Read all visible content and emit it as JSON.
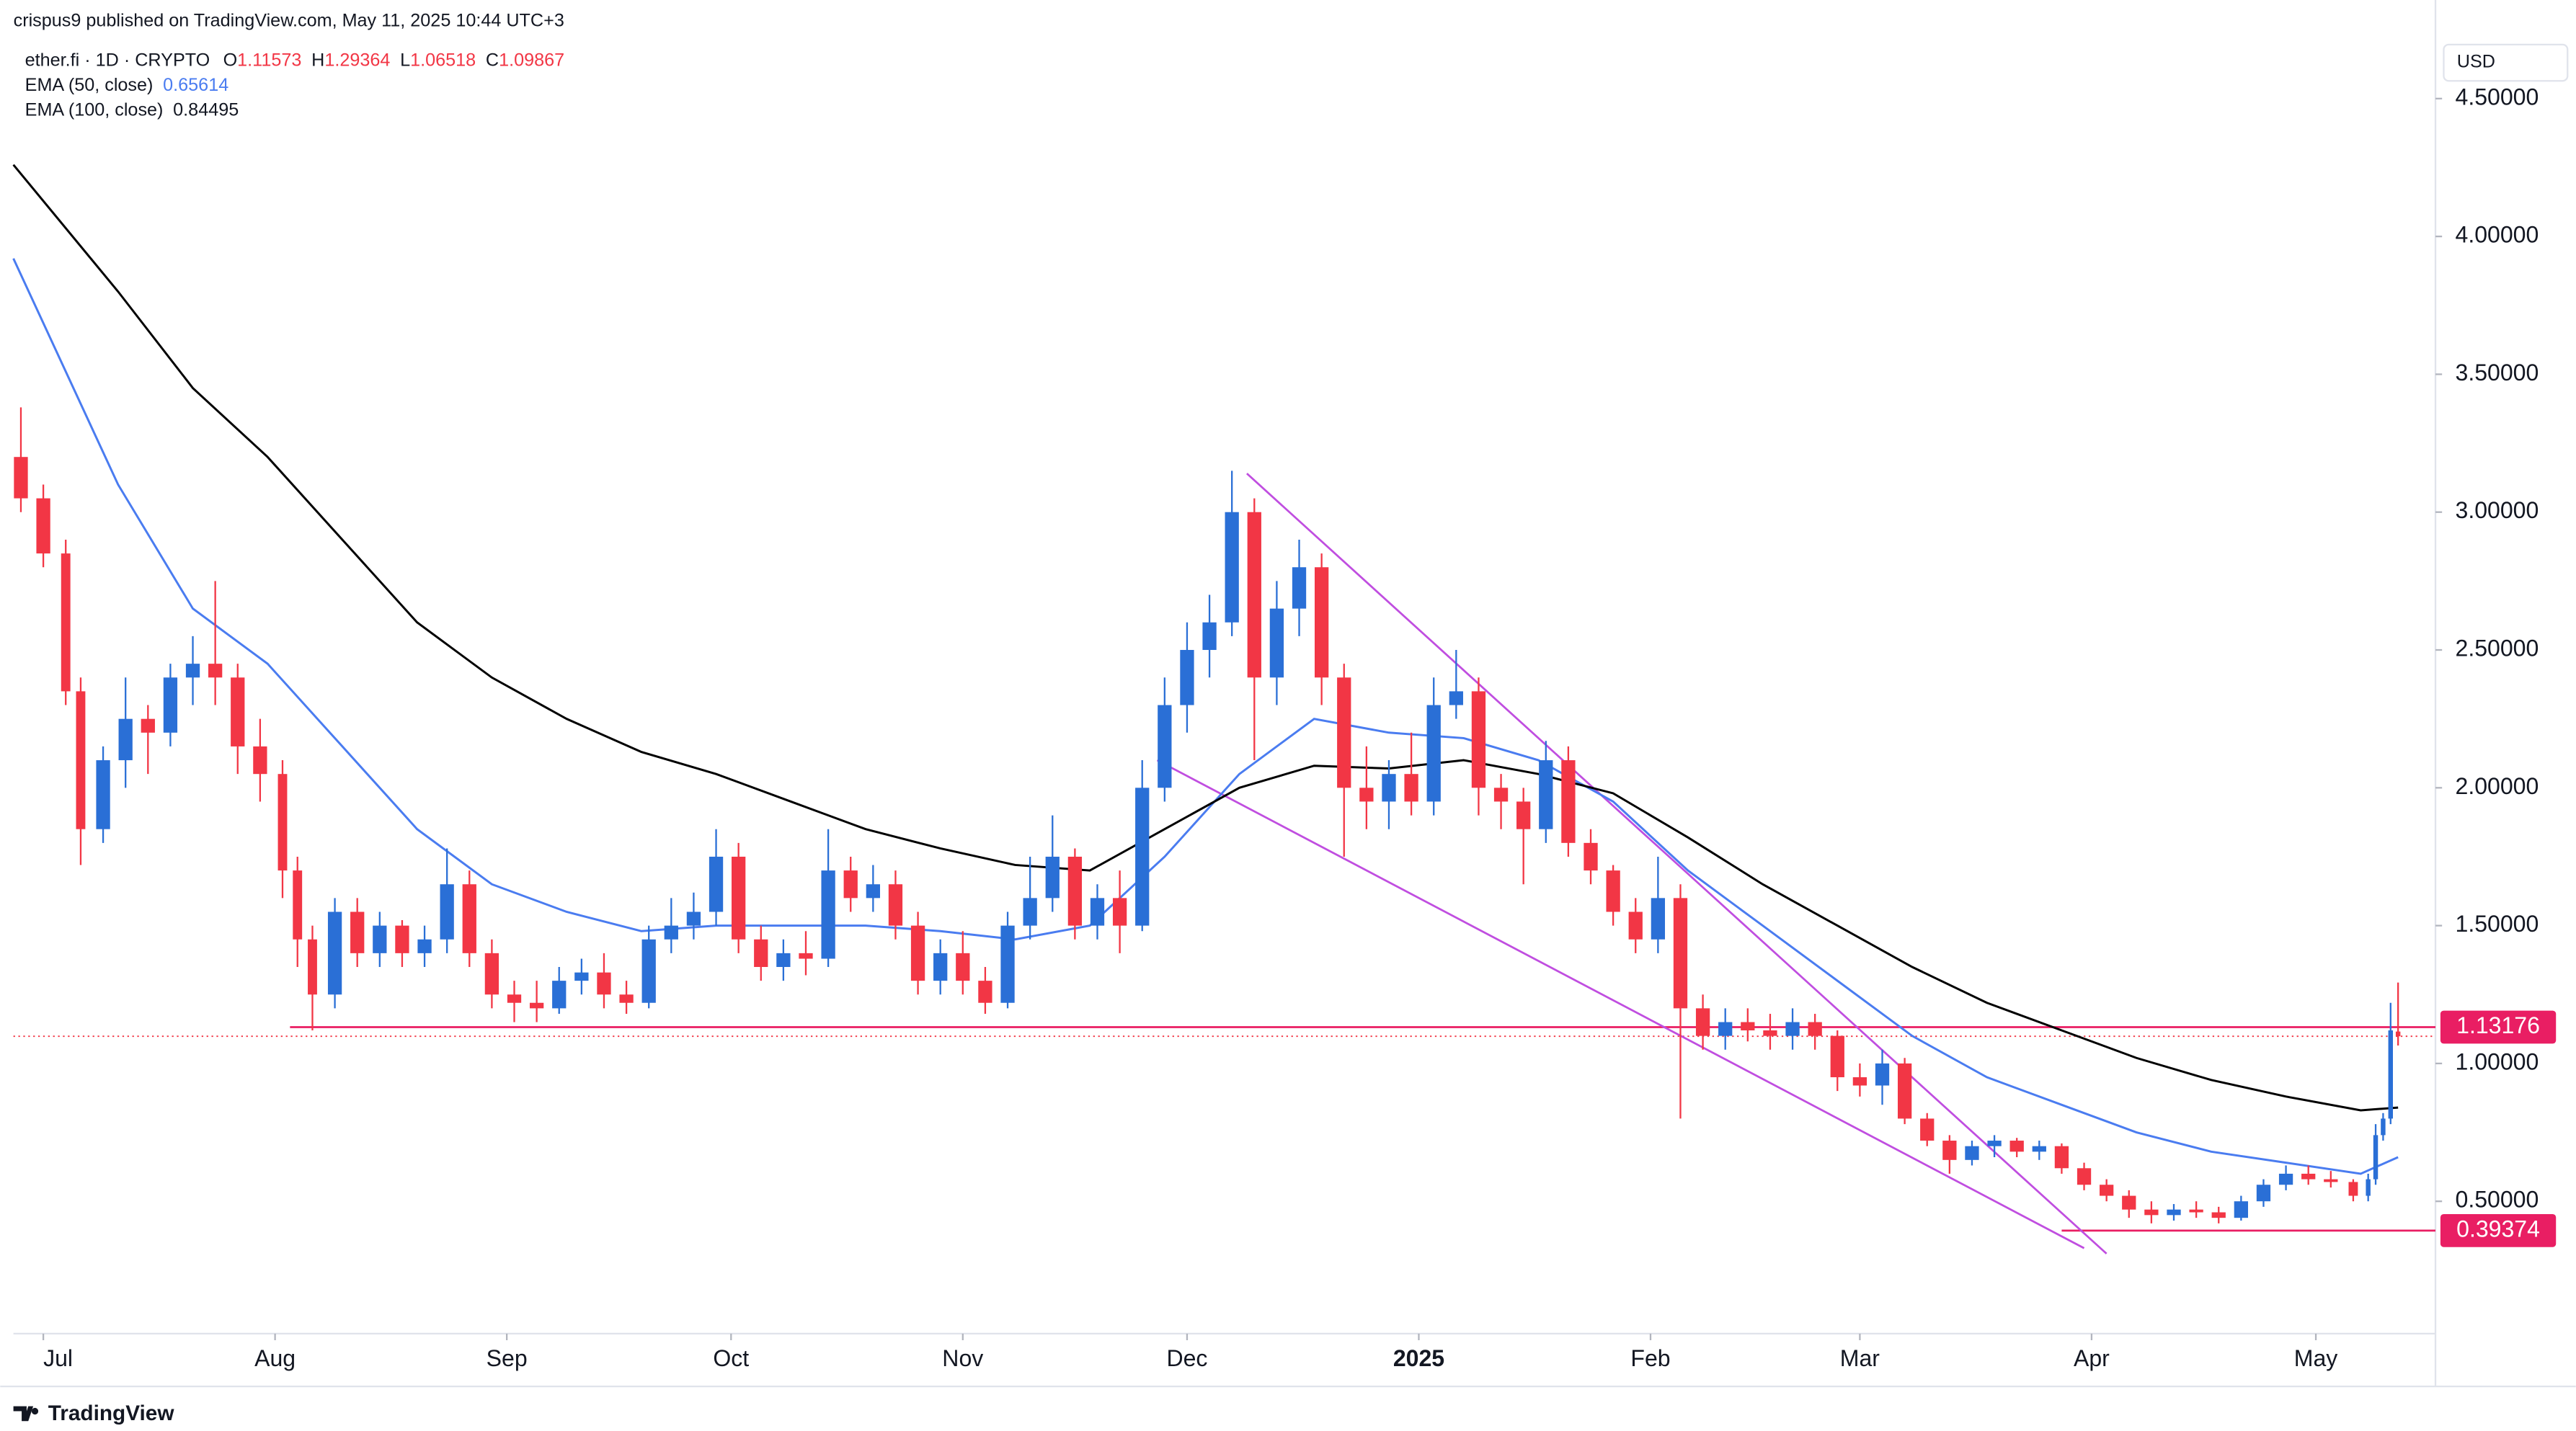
{
  "chart_data": {
    "type": "candlestick",
    "publisher": "crispus9 published on TradingView.com, May 11, 2025 10:44 UTC+3",
    "title": "ether.fi · 1D · CRYPTO",
    "ohlc_labels": [
      "O",
      "H",
      "L",
      "C"
    ],
    "currency": "USD",
    "footer": "TradingView",
    "up_color": "#2a6fd6",
    "down_color": "#f23645",
    "x": [
      -3,
      0,
      3,
      5,
      8,
      11,
      14,
      17,
      20,
      23,
      26,
      29,
      32,
      34,
      36,
      39,
      42,
      45,
      48,
      51,
      54,
      57,
      60,
      63,
      66,
      69,
      72,
      75,
      78,
      81,
      84,
      87,
      90,
      93,
      96,
      99,
      102,
      105,
      108,
      111,
      114,
      117,
      120,
      123,
      126,
      129,
      132,
      135,
      138,
      141,
      144,
      147,
      150,
      153,
      156,
      159,
      162,
      165,
      168,
      171,
      174,
      177,
      180,
      183,
      186,
      189,
      192,
      195,
      198,
      201,
      204,
      207,
      210,
      213,
      216,
      219,
      222,
      225,
      228,
      231,
      234,
      237,
      240,
      243,
      246,
      249,
      252,
      255,
      258,
      261,
      264,
      267,
      270,
      273,
      276,
      279,
      282,
      285,
      288,
      291,
      294,
      297,
      300,
      303,
      306,
      309,
      311,
      312,
      313,
      314,
      315
    ],
    "open": [
      3.2,
      3.05,
      2.85,
      2.35,
      1.85,
      2.1,
      2.25,
      2.2,
      2.4,
      2.45,
      2.4,
      2.15,
      2.05,
      1.7,
      1.45,
      1.25,
      1.55,
      1.4,
      1.5,
      1.4,
      1.45,
      1.65,
      1.4,
      1.25,
      1.22,
      1.2,
      1.3,
      1.33,
      1.25,
      1.22,
      1.45,
      1.5,
      1.55,
      1.75,
      1.45,
      1.35,
      1.4,
      1.38,
      1.7,
      1.6,
      1.65,
      1.5,
      1.3,
      1.4,
      1.3,
      1.22,
      1.5,
      1.6,
      1.75,
      1.5,
      1.6,
      1.5,
      2.0,
      2.3,
      2.5,
      2.6,
      3.0,
      2.4,
      2.65,
      2.8,
      2.4,
      2.0,
      1.95,
      2.05,
      1.95,
      2.3,
      2.35,
      2.0,
      1.95,
      1.85,
      2.1,
      1.8,
      1.7,
      1.55,
      1.45,
      1.6,
      1.2,
      1.1,
      1.15,
      1.12,
      1.1,
      1.15,
      1.1,
      0.95,
      0.92,
      1.0,
      0.8,
      0.72,
      0.65,
      0.7,
      0.72,
      0.68,
      0.7,
      0.62,
      0.56,
      0.52,
      0.47,
      0.45,
      0.47,
      0.46,
      0.44,
      0.5,
      0.56,
      0.6,
      0.58,
      0.57,
      0.52,
      0.58,
      0.74,
      0.8,
      1.11573
    ],
    "high": [
      3.38,
      3.1,
      2.9,
      2.4,
      2.15,
      2.4,
      2.3,
      2.45,
      2.55,
      2.75,
      2.45,
      2.25,
      2.1,
      1.75,
      1.5,
      1.6,
      1.6,
      1.55,
      1.52,
      1.5,
      1.78,
      1.7,
      1.45,
      1.3,
      1.3,
      1.35,
      1.38,
      1.4,
      1.3,
      1.5,
      1.6,
      1.62,
      1.85,
      1.8,
      1.5,
      1.45,
      1.48,
      1.85,
      1.75,
      1.72,
      1.7,
      1.55,
      1.45,
      1.48,
      1.35,
      1.55,
      1.75,
      1.9,
      1.78,
      1.65,
      1.7,
      2.1,
      2.4,
      2.6,
      2.7,
      3.15,
      3.05,
      2.75,
      2.9,
      2.85,
      2.45,
      2.15,
      2.1,
      2.2,
      2.4,
      2.5,
      2.4,
      2.05,
      2.0,
      2.17,
      2.15,
      1.85,
      1.72,
      1.6,
      1.75,
      1.65,
      1.25,
      1.2,
      1.2,
      1.18,
      1.2,
      1.18,
      1.12,
      1.0,
      1.05,
      1.02,
      0.82,
      0.74,
      0.72,
      0.74,
      0.73,
      0.72,
      0.71,
      0.64,
      0.58,
      0.54,
      0.5,
      0.49,
      0.5,
      0.48,
      0.52,
      0.58,
      0.63,
      0.63,
      0.61,
      0.58,
      0.6,
      0.78,
      0.82,
      1.22,
      1.29364
    ],
    "low": [
      3.0,
      2.8,
      2.3,
      1.72,
      1.8,
      2.0,
      2.05,
      2.15,
      2.3,
      2.3,
      2.05,
      1.95,
      1.6,
      1.35,
      1.12,
      1.2,
      1.35,
      1.35,
      1.35,
      1.35,
      1.4,
      1.35,
      1.2,
      1.15,
      1.15,
      1.18,
      1.25,
      1.2,
      1.18,
      1.2,
      1.4,
      1.45,
      1.5,
      1.4,
      1.3,
      1.3,
      1.32,
      1.35,
      1.55,
      1.55,
      1.45,
      1.25,
      1.25,
      1.25,
      1.18,
      1.2,
      1.45,
      1.55,
      1.45,
      1.45,
      1.4,
      1.48,
      1.95,
      2.2,
      2.4,
      2.55,
      2.1,
      2.3,
      2.55,
      2.3,
      1.75,
      1.85,
      1.85,
      1.9,
      1.9,
      2.25,
      1.9,
      1.85,
      1.65,
      1.8,
      1.75,
      1.65,
      1.5,
      1.4,
      1.4,
      0.8,
      1.05,
      1.05,
      1.08,
      1.05,
      1.05,
      1.05,
      0.9,
      0.88,
      0.85,
      0.78,
      0.7,
      0.6,
      0.63,
      0.66,
      0.66,
      0.65,
      0.6,
      0.54,
      0.5,
      0.44,
      0.42,
      0.43,
      0.44,
      0.42,
      0.43,
      0.48,
      0.54,
      0.56,
      0.55,
      0.5,
      0.5,
      0.56,
      0.72,
      0.78,
      1.06518
    ],
    "close": [
      3.05,
      2.85,
      2.35,
      1.85,
      2.1,
      2.25,
      2.2,
      2.4,
      2.45,
      2.4,
      2.15,
      2.05,
      1.7,
      1.45,
      1.25,
      1.55,
      1.4,
      1.5,
      1.4,
      1.45,
      1.65,
      1.4,
      1.25,
      1.22,
      1.2,
      1.3,
      1.33,
      1.25,
      1.22,
      1.45,
      1.5,
      1.55,
      1.75,
      1.45,
      1.35,
      1.4,
      1.38,
      1.7,
      1.6,
      1.65,
      1.5,
      1.3,
      1.4,
      1.3,
      1.22,
      1.5,
      1.6,
      1.75,
      1.5,
      1.6,
      1.5,
      2.0,
      2.3,
      2.5,
      2.6,
      3.0,
      2.4,
      2.65,
      2.8,
      2.4,
      2.0,
      1.95,
      2.05,
      1.95,
      2.3,
      2.35,
      2.0,
      1.95,
      1.85,
      2.1,
      1.8,
      1.7,
      1.55,
      1.45,
      1.6,
      1.2,
      1.1,
      1.15,
      1.12,
      1.1,
      1.15,
      1.1,
      0.95,
      0.92,
      1.0,
      0.8,
      0.72,
      0.65,
      0.7,
      0.72,
      0.68,
      0.7,
      0.62,
      0.56,
      0.52,
      0.47,
      0.45,
      0.47,
      0.46,
      0.44,
      0.5,
      0.56,
      0.6,
      0.58,
      0.57,
      0.52,
      0.58,
      0.74,
      0.8,
      1.12,
      1.09867
    ],
    "series": [
      {
        "name": "EMA (50, close)",
        "color": "#4a7cf0",
        "current": 0.65614,
        "x": [
          -4,
          10,
          20,
          30,
          40,
          50,
          60,
          70,
          80,
          90,
          100,
          110,
          120,
          130,
          140,
          150,
          160,
          170,
          180,
          190,
          200,
          210,
          220,
          230,
          240,
          250,
          260,
          270,
          280,
          290,
          300,
          310,
          315
        ],
        "values": [
          3.92,
          3.1,
          2.65,
          2.45,
          2.15,
          1.85,
          1.65,
          1.55,
          1.48,
          1.5,
          1.5,
          1.5,
          1.48,
          1.45,
          1.5,
          1.75,
          2.05,
          2.25,
          2.2,
          2.18,
          2.1,
          1.95,
          1.7,
          1.5,
          1.3,
          1.1,
          0.95,
          0.85,
          0.75,
          0.68,
          0.64,
          0.6,
          0.66
        ]
      },
      {
        "name": "EMA (100, close)",
        "color": "#000000",
        "current": 0.84495,
        "x": [
          -4,
          10,
          20,
          30,
          40,
          50,
          60,
          70,
          80,
          90,
          100,
          110,
          120,
          130,
          140,
          150,
          160,
          170,
          180,
          190,
          200,
          210,
          220,
          230,
          240,
          250,
          260,
          270,
          280,
          290,
          300,
          310,
          315
        ],
        "values": [
          4.26,
          3.8,
          3.45,
          3.2,
          2.9,
          2.6,
          2.4,
          2.25,
          2.13,
          2.05,
          1.95,
          1.85,
          1.78,
          1.72,
          1.7,
          1.85,
          2.0,
          2.08,
          2.07,
          2.1,
          2.05,
          1.98,
          1.82,
          1.65,
          1.5,
          1.35,
          1.22,
          1.12,
          1.02,
          0.94,
          0.88,
          0.83,
          0.84
        ]
      }
    ],
    "trendline_color": "#c04ee0",
    "trendlines": [
      {
        "x": [
          161,
          276
        ],
        "values": [
          3.14,
          0.31
        ]
      },
      {
        "x": [
          149,
          273
        ],
        "values": [
          2.1,
          0.33
        ]
      }
    ],
    "level_color": "#e91e63",
    "levels": [
      {
        "value": 1.13176,
        "from": 33
      },
      {
        "value": 0.39374,
        "from": 270
      }
    ],
    "xlim": [
      -4,
      320
    ],
    "xticks": [
      {
        "value": 0,
        "label": "Jul"
      },
      {
        "value": 31,
        "label": "Aug"
      },
      {
        "value": 62,
        "label": "Sep"
      },
      {
        "value": 92,
        "label": "Oct"
      },
      {
        "value": 123,
        "label": "Nov"
      },
      {
        "value": 153,
        "label": "Dec"
      },
      {
        "value": 184,
        "label": "2025"
      },
      {
        "value": 215,
        "label": "Feb"
      },
      {
        "value": 243,
        "label": "Mar"
      },
      {
        "value": 274,
        "label": "Apr"
      },
      {
        "value": 304,
        "label": "May"
      }
    ],
    "ylim": [
      0.02,
      4.69
    ],
    "yticks": [
      {
        "value": 0.5,
        "label": "0.50000"
      },
      {
        "value": 1,
        "label": "1.00000"
      },
      {
        "value": 1.5,
        "label": "1.50000"
      },
      {
        "value": 2,
        "label": "2.00000"
      },
      {
        "value": 2.5,
        "label": "2.50000"
      },
      {
        "value": 3,
        "label": "3.00000"
      },
      {
        "value": 3.5,
        "label": "3.50000"
      },
      {
        "value": 4,
        "label": "4.00000"
      },
      {
        "value": 4.5,
        "label": "4.50000"
      }
    ]
  }
}
